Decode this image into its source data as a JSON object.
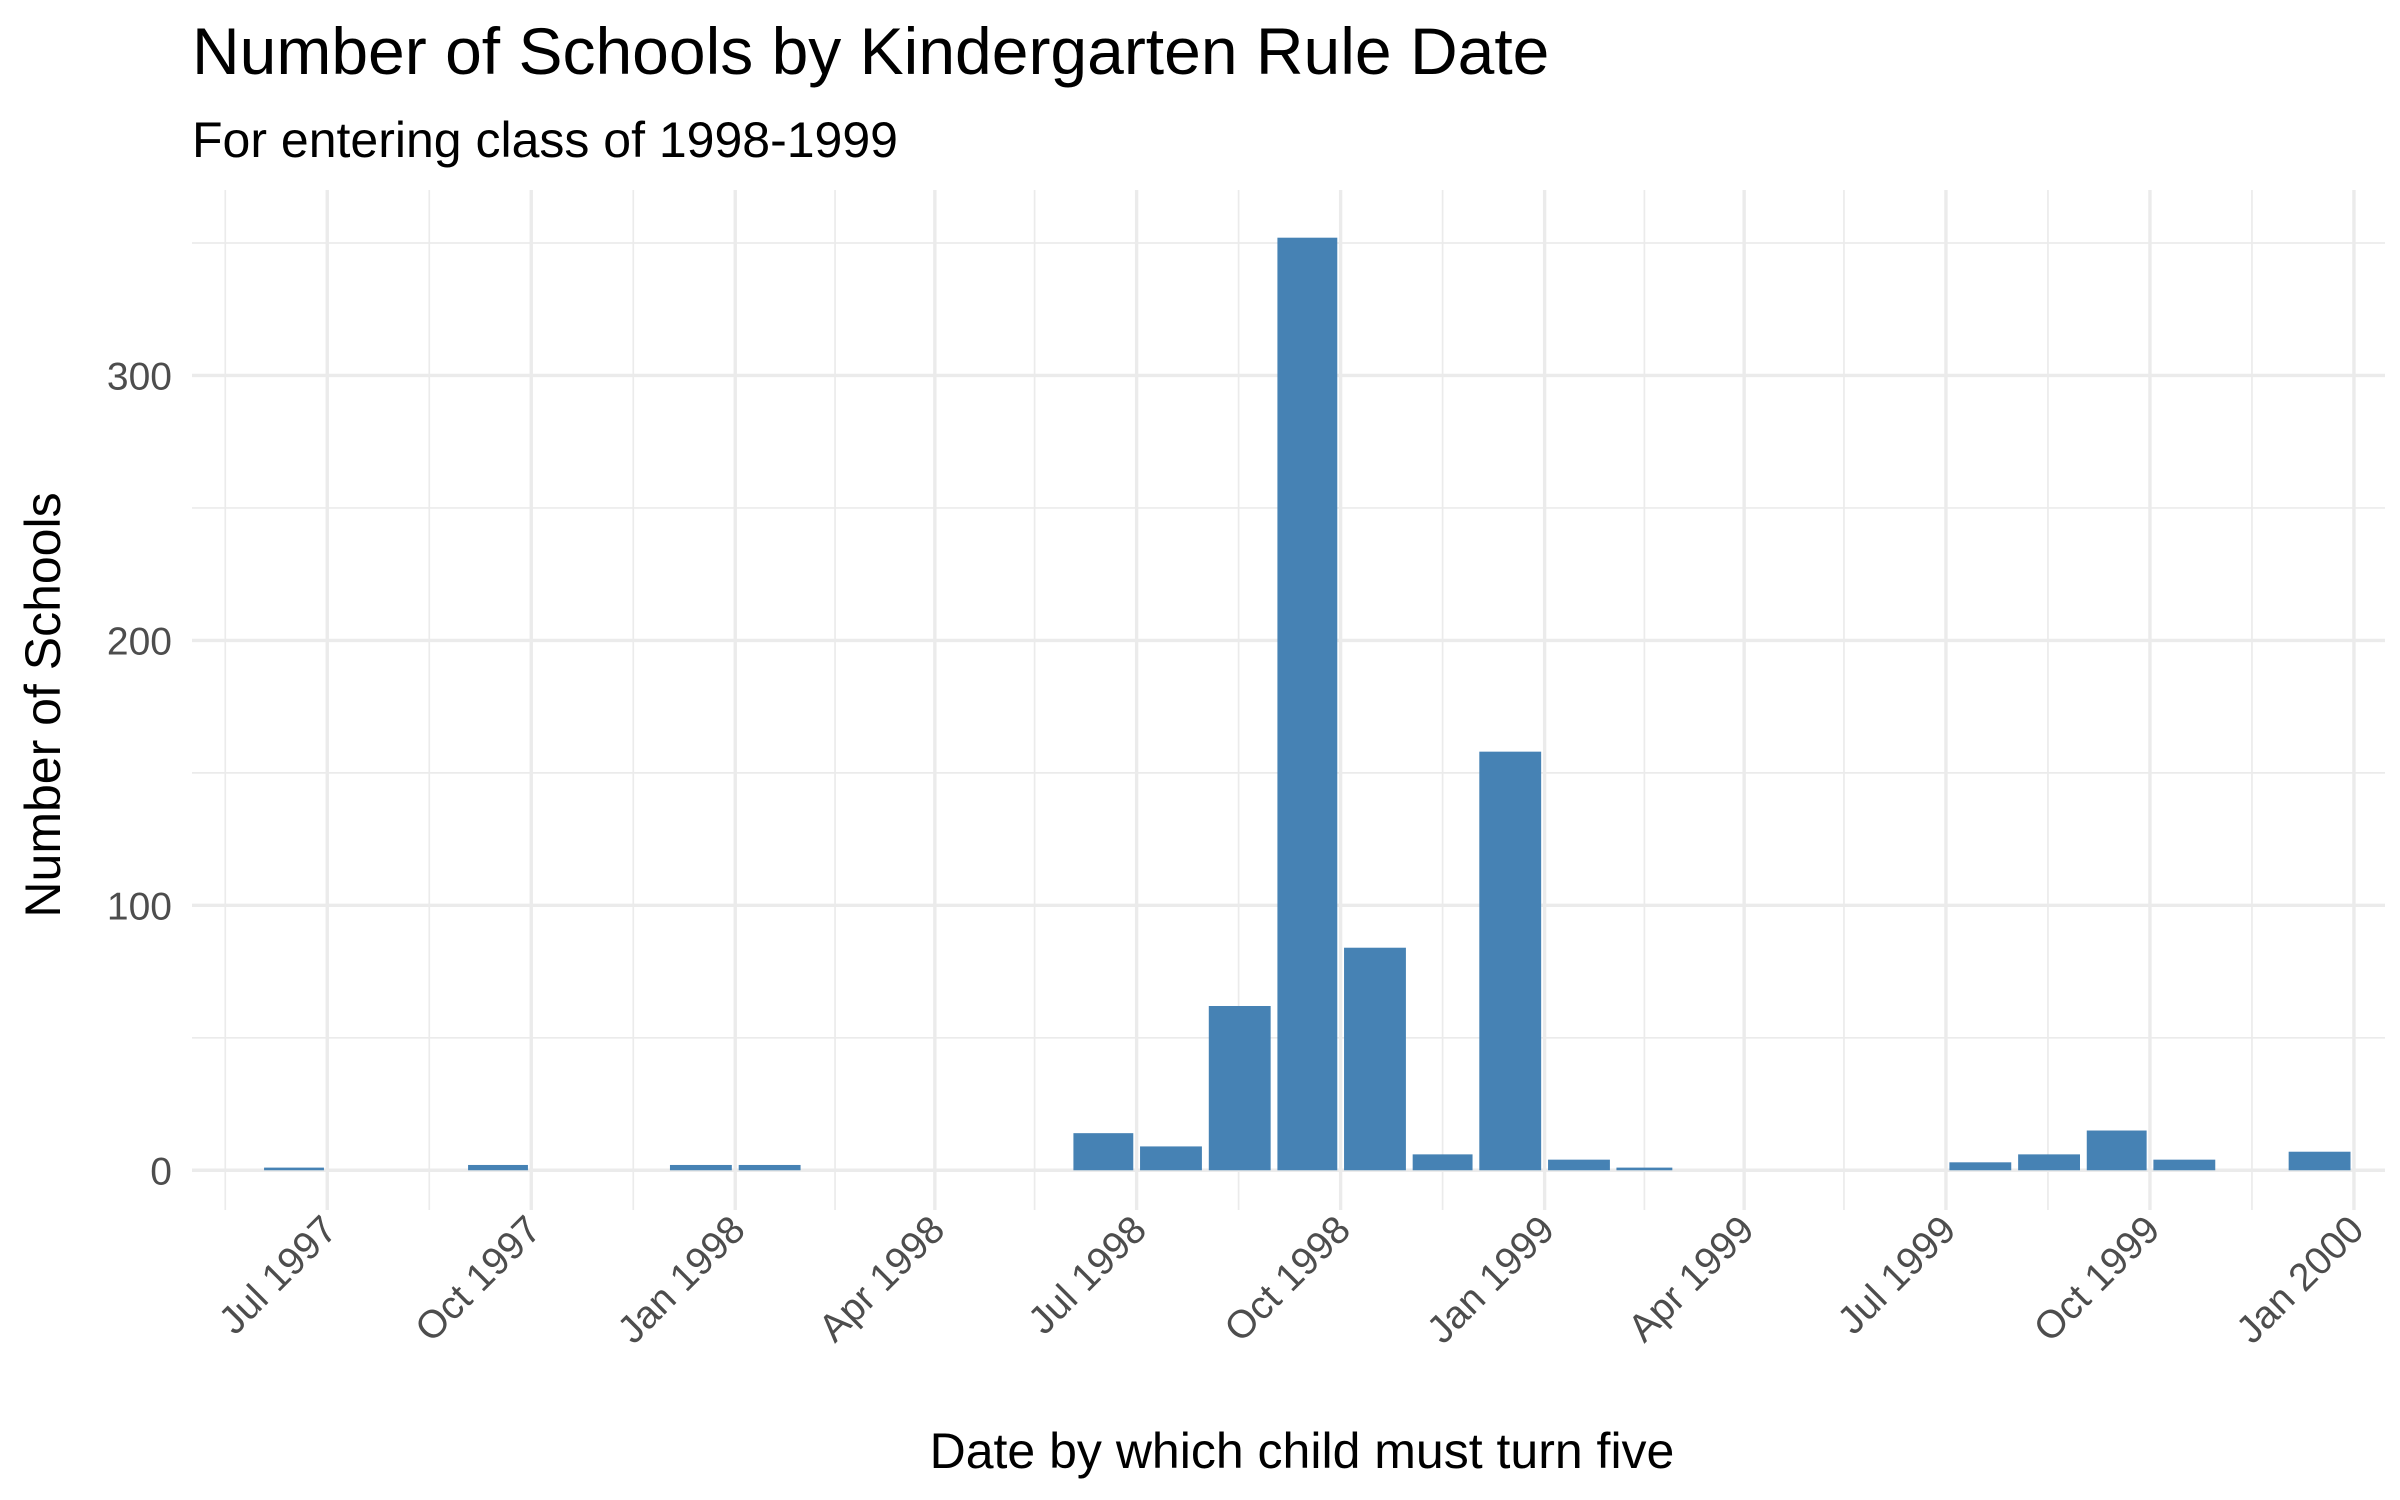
{
  "chart_data": {
    "type": "bar",
    "title": "Number of Schools by Kindergarten Rule Date",
    "subtitle": "For entering class of 1998-1999",
    "xlabel": "Date by which child must turn five",
    "ylabel": "Number of Schools",
    "x_axis_type": "date",
    "xlim": [
      "1997-05-01",
      "2000-01-15"
    ],
    "ylim": [
      -15,
      370
    ],
    "y_ticks": [
      0,
      100,
      200,
      300
    ],
    "y_tick_labels": [
      "0",
      "100",
      "200",
      "300"
    ],
    "x_ticks": [
      "1997-07-01",
      "1997-10-01",
      "1998-01-01",
      "1998-04-01",
      "1998-07-01",
      "1998-10-01",
      "1999-01-01",
      "1999-04-01",
      "1999-07-01",
      "1999-10-01",
      "2000-01-01"
    ],
    "x_tick_labels": [
      "Jul 1997",
      "Oct 1997",
      "Jan 1998",
      "Apr 1998",
      "Jul 1998",
      "Oct 1998",
      "Jan 1999",
      "Apr 1999",
      "Jul 1999",
      "Oct 1999",
      "Jan 2000"
    ],
    "x_minor_ticks": [
      "1997-05-16",
      "1997-08-16",
      "1997-11-16",
      "1998-02-15",
      "1998-05-16",
      "1998-08-16",
      "1998-11-16",
      "1999-02-15",
      "1999-05-16",
      "1999-08-16",
      "1999-11-16"
    ],
    "y_minor_ticks": [
      50,
      150,
      250,
      350
    ],
    "categories": [
      "1997-06",
      "1997-09",
      "1997-12",
      "1998-01",
      "1998-06",
      "1998-07",
      "1998-08",
      "1998-09",
      "1998-10",
      "1998-11",
      "1998-12",
      "1999-01",
      "1999-02",
      "1999-07",
      "1999-08",
      "1999-09",
      "1999-10",
      "1999-12"
    ],
    "values": [
      1,
      2,
      2,
      2,
      14,
      9,
      62,
      352,
      84,
      6,
      158,
      4,
      1,
      3,
      6,
      15,
      4,
      7
    ],
    "grid": true,
    "legend": "none",
    "bar_color": "#4682b4",
    "grid_color": "#ebebeb"
  }
}
